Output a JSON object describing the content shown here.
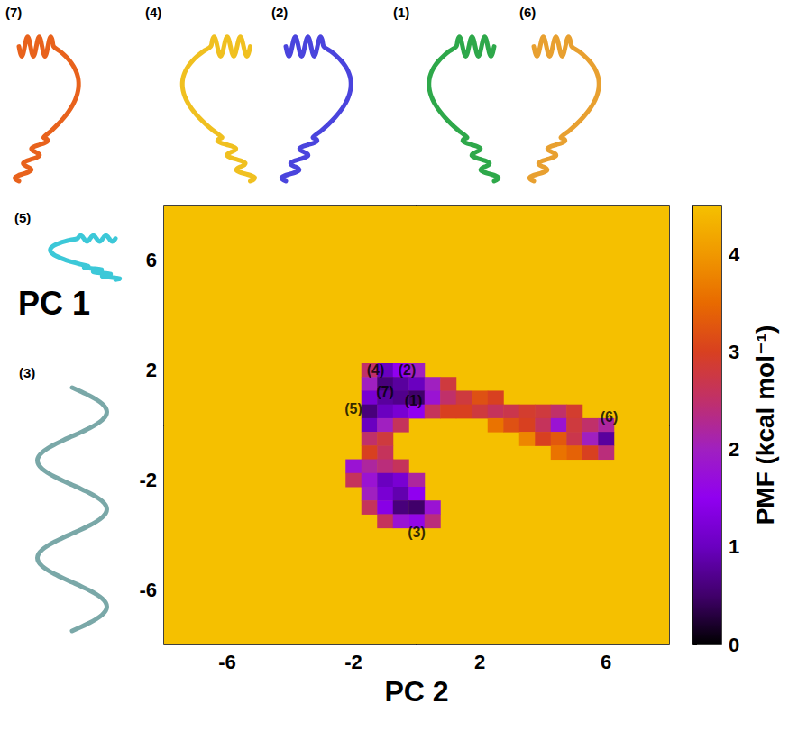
{
  "chart_data": {
    "type": "heatmap",
    "x_label": "PC 2",
    "y_label": "PC 1",
    "xlim": [
      -8,
      8
    ],
    "ylim": [
      -8,
      8
    ],
    "xticks": [
      -6,
      -2,
      2,
      6
    ],
    "yticks": [
      -6,
      -2,
      2,
      6
    ],
    "grid": false,
    "cell_size": 0.5,
    "cells": [
      [
        -1.5,
        2,
        2.5
      ],
      [
        -1,
        2,
        1.0
      ],
      [
        -0.5,
        2,
        1.5
      ],
      [
        0,
        2,
        2.0
      ],
      [
        -1.5,
        1.5,
        2.0
      ],
      [
        -1,
        1.5,
        0.6
      ],
      [
        -0.5,
        1.5,
        0.8
      ],
      [
        0,
        1.5,
        1.0
      ],
      [
        0.5,
        1.5,
        2.0
      ],
      [
        1,
        1.5,
        2.8
      ],
      [
        -1.5,
        1,
        1.2
      ],
      [
        -1,
        1,
        0.8
      ],
      [
        -0.5,
        1,
        0.7
      ],
      [
        0,
        1,
        0.5
      ],
      [
        0.5,
        1,
        1.8
      ],
      [
        1,
        1,
        2.5
      ],
      [
        1.5,
        1,
        2.8
      ],
      [
        2,
        1,
        3.2
      ],
      [
        2.5,
        1,
        3.0
      ],
      [
        -1.5,
        0.5,
        0.6
      ],
      [
        -1,
        0.5,
        1.0
      ],
      [
        -0.5,
        0.5,
        1.2
      ],
      [
        0,
        0.5,
        1.5
      ],
      [
        0.5,
        0.5,
        2.6
      ],
      [
        1,
        0.5,
        3.0
      ],
      [
        1.5,
        0.5,
        3.0
      ],
      [
        2,
        0.5,
        2.8
      ],
      [
        2.5,
        0.5,
        2.6
      ],
      [
        3,
        0.5,
        2.7
      ],
      [
        3.5,
        0.5,
        2.9
      ],
      [
        4,
        0.5,
        2.8
      ],
      [
        4.5,
        0.5,
        2.5
      ],
      [
        5,
        0.5,
        2.9
      ],
      [
        -1.5,
        0,
        1.0
      ],
      [
        -1,
        0,
        2.0
      ],
      [
        -0.5,
        0,
        2.6
      ],
      [
        2.5,
        0,
        3.6
      ],
      [
        3,
        0,
        3.2
      ],
      [
        3.5,
        0,
        3.0
      ],
      [
        4,
        0,
        2.6
      ],
      [
        4.5,
        0,
        1.8
      ],
      [
        5,
        0,
        2.8
      ],
      [
        5.5,
        0,
        2.5
      ],
      [
        6,
        0,
        2.2
      ],
      [
        -1.5,
        -0.5,
        2.5
      ],
      [
        -1,
        -0.5,
        2.8
      ],
      [
        3.5,
        -0.5,
        3.8
      ],
      [
        4,
        -0.5,
        3.0
      ],
      [
        4.5,
        -0.5,
        3.3
      ],
      [
        5,
        -0.5,
        2.7
      ],
      [
        5.5,
        -0.5,
        2.0
      ],
      [
        6,
        -0.5,
        0.8
      ],
      [
        -1.5,
        -1,
        3.0
      ],
      [
        -1,
        -1,
        2.6
      ],
      [
        4.5,
        -1,
        3.6
      ],
      [
        5,
        -1,
        3.4
      ],
      [
        5.5,
        -1,
        3.0
      ],
      [
        6,
        -1,
        2.4
      ],
      [
        -2,
        -1.5,
        1.8
      ],
      [
        -1.5,
        -1.5,
        2.2
      ],
      [
        -1,
        -1.5,
        2.4
      ],
      [
        -0.5,
        -1.5,
        2.6
      ],
      [
        -2,
        -2,
        2.6
      ],
      [
        -1.5,
        -2,
        1.8
      ],
      [
        -1,
        -2,
        1.0
      ],
      [
        -0.5,
        -2,
        1.2
      ],
      [
        0,
        -2,
        2.2
      ],
      [
        -1.5,
        -2.5,
        2.0
      ],
      [
        -1,
        -2.5,
        1.2
      ],
      [
        -0.5,
        -2.5,
        0.9
      ],
      [
        0,
        -2.5,
        1.5
      ],
      [
        -1.5,
        -3,
        2.6
      ],
      [
        -1,
        -3,
        1.4
      ],
      [
        -0.5,
        -3,
        0.6
      ],
      [
        0,
        -3,
        0.5
      ],
      [
        0.5,
        -3,
        1.8
      ],
      [
        -1,
        -3.5,
        2.6
      ],
      [
        -0.5,
        -3.5,
        1.8
      ],
      [
        0,
        -3.5,
        1.6
      ],
      [
        0.5,
        -3.5,
        2.4
      ]
    ],
    "colorbar": {
      "label": "PMF (kcal mol⁻¹)",
      "range": [
        0,
        4.5
      ],
      "ticks": [
        0,
        1,
        2,
        3,
        4
      ]
    },
    "annotations": [
      {
        "text": "(4)",
        "x": -1.3,
        "y": 2.0
      },
      {
        "text": "(2)",
        "x": -0.3,
        "y": 2.0
      },
      {
        "text": "(7)",
        "x": -1.0,
        "y": 1.2
      },
      {
        "text": "(1)",
        "x": -0.1,
        "y": 0.9
      },
      {
        "text": "(5)",
        "x": -2.0,
        "y": 0.6
      },
      {
        "text": "(6)",
        "x": 6.1,
        "y": 0.3
      },
      {
        "text": "(3)",
        "x": 0.0,
        "y": -3.9
      }
    ],
    "structures": [
      {
        "label": "(7)",
        "color": "#e8621c"
      },
      {
        "label": "(4)",
        "color": "#f0c020"
      },
      {
        "label": "(2)",
        "color": "#4a44dd"
      },
      {
        "label": "(1)",
        "color": "#2ea84a"
      },
      {
        "label": "(6)",
        "color": "#e8a030"
      },
      {
        "label": "(5)",
        "color": "#3cc8d8"
      },
      {
        "label": "(3)",
        "color": "#7aa8a8"
      }
    ]
  }
}
